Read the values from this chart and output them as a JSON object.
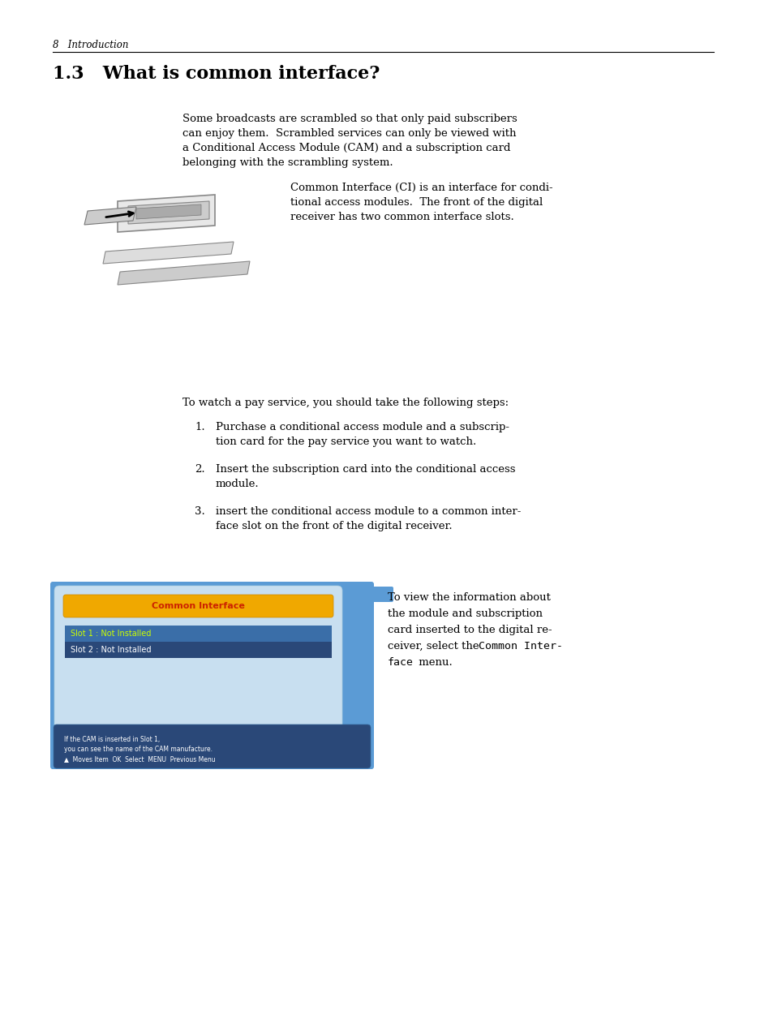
{
  "bg_color": "#ffffff",
  "header_text": "8   Introduction",
  "section_title": "1.3   What is common interface?",
  "para1_lines": [
    "Some broadcasts are scrambled so that only paid subscribers",
    "can enjoy them.  Scrambled services can only be viewed with",
    "a Conditional Access Module (CAM) and a subscription card",
    "belonging with the scrambling system."
  ],
  "para2_lines": [
    "Common Interface (CI) is an interface for condi-",
    "tional access modules.  The front of the digital",
    "receiver has two common interface slots."
  ],
  "para3": "To watch a pay service, you should take the following steps:",
  "list_items": [
    [
      "Purchase a conditional access module and a subscrip-",
      "tion card for the pay service you want to watch."
    ],
    [
      "Insert the subscription card into the conditional access",
      "module."
    ],
    [
      "insert the conditional access module to a common inter-",
      "face slot on the front of the digital receiver."
    ]
  ],
  "para4_lines": [
    "To view the information about",
    "the module and subscription",
    "card inserted to the digital re-",
    "ceiver, select the "
  ],
  "para4_mono": "Common Inter-",
  "para4_mono2": "face",
  "para4_end": " menu.",
  "screen_title": "Common Interface",
  "screen_slot1": "Slot 1 : Not Installed",
  "screen_slot2": "Slot 2 : Not Installed",
  "screen_info1": "If the CAM is inserted in Slot 1,",
  "screen_info2": "you can see the name of the CAM manufacture.",
  "screen_info3": "▲  Moves Item  OK  Select  MENU  Previous Menu",
  "screen_bg": "#5b9bd5",
  "screen_panel_bg": "#c8dff0",
  "screen_title_bg": "#f0a800",
  "screen_title_fg": "#cc2200",
  "screen_slot1_bg": "#3a6ea8",
  "screen_slot1_fg": "#ccff00",
  "screen_slot2_bg": "#2a4878",
  "screen_slot2_fg": "#ffffff",
  "screen_info_bg": "#2a4878",
  "screen_info_fg": "#ffffff"
}
